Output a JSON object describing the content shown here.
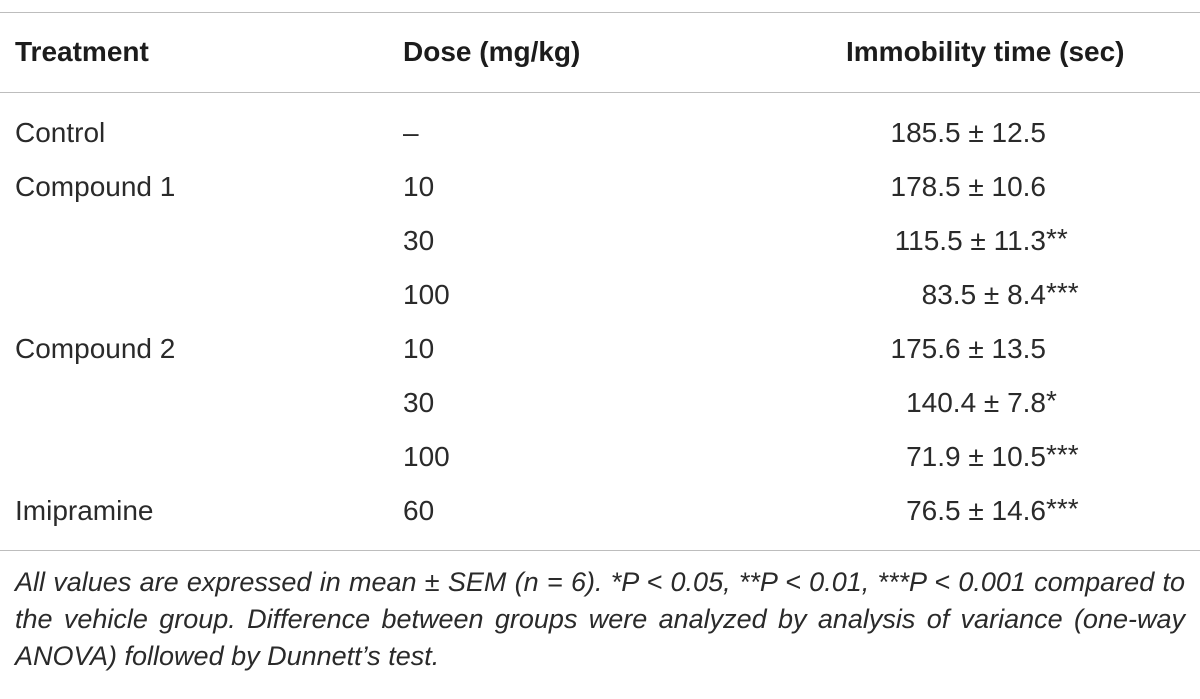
{
  "table": {
    "headers": {
      "treatment": "Treatment",
      "dose": "Dose (mg/kg)",
      "immobility": "Immobility time (sec)"
    },
    "rows": [
      {
        "treatment": "Control",
        "dose": "–",
        "value": "185.5 ± 12.5",
        "sig": ""
      },
      {
        "treatment": "Compound 1",
        "dose": "10",
        "value": "178.5 ± 10.6",
        "sig": ""
      },
      {
        "treatment": "",
        "dose": "30",
        "value": "115.5 ± 11.3",
        "sig": "**"
      },
      {
        "treatment": "",
        "dose": "100",
        "value": "83.5 ± 8.4",
        "sig": "***"
      },
      {
        "treatment": "Compound 2",
        "dose": "10",
        "value": "175.6 ± 13.5",
        "sig": ""
      },
      {
        "treatment": "",
        "dose": "30",
        "value": "140.4 ± 7.8",
        "sig": "*"
      },
      {
        "treatment": "",
        "dose": "100",
        "value": "71.9 ± 10.5",
        "sig": "***"
      },
      {
        "treatment": "Imipramine",
        "dose": "60",
        "value": "76.5 ± 14.6",
        "sig": "***"
      }
    ]
  },
  "footnote": "All values are expressed in mean ± SEM (n = 6). *P < 0.05, **P < 0.01, ***P < 0.001 compared to the vehicle group. Difference between groups were analyzed by analysis of variance (one-way ANOVA) followed by Dunnett’s test."
}
